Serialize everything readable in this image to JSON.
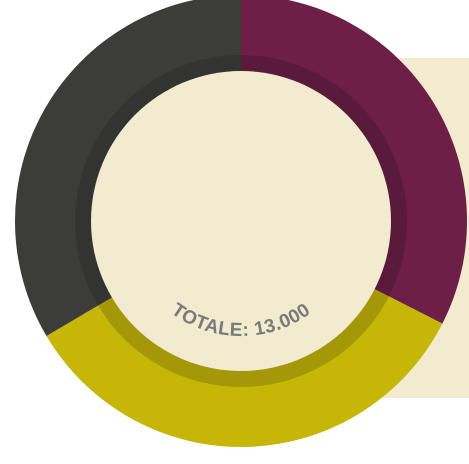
{
  "chart_data": {
    "type": "donut",
    "title": "",
    "total_label": "TOTALE: 13.000",
    "slices": [
      {
        "name": "",
        "value": 4225,
        "color": "#6d1f47",
        "shade": "#5a1a3b"
      },
      {
        "name": "",
        "value": 4420,
        "color": "#c5b608",
        "shade": "#a49708"
      },
      {
        "name": "",
        "value": 4355,
        "color": "#3c3c3a",
        "shade": "#333331"
      }
    ]
  },
  "colors": {
    "center": "#f2ebd0",
    "text": "#7a7a7a"
  }
}
